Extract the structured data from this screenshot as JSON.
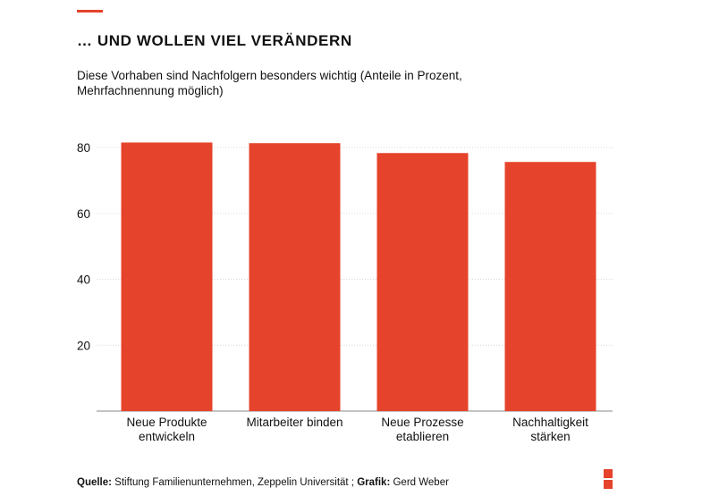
{
  "header": {
    "title": "… UND WOLLEN VIEL VERÄNDERN",
    "subtitle": "Diese Vorhaben sind Nachfolgern besonders wichtig (Anteile in Prozent, Mehrfachnennung möglich)"
  },
  "footer": {
    "source_label": "Quelle:",
    "source_text": " Stiftung Familienunternehmen, Zeppelin Universität ; ",
    "graphic_label": "Grafik:",
    "graphic_text": " Gerd Weber"
  },
  "colors": {
    "accent": "#e5432b",
    "bar": "#e5432b"
  },
  "chart_data": {
    "type": "bar",
    "title": "… UND WOLLEN VIEL VERÄNDERN",
    "subtitle": "Diese Vorhaben sind Nachfolgern besonders wichtig (Anteile in Prozent, Mehrfachnennung möglich)",
    "categories": [
      [
        "Neue Produkte",
        "entwickeln"
      ],
      [
        "Mitarbeiter binden"
      ],
      [
        "Neue Prozesse",
        "etablieren"
      ],
      [
        "Nachhaltigkeit",
        "stärken"
      ]
    ],
    "values": [
      81.5,
      81.3,
      78.3,
      75.6
    ],
    "yticks": [
      20,
      40,
      60,
      80
    ],
    "ylim": [
      0,
      80
    ],
    "grid": true,
    "xlabel": "",
    "ylabel": ""
  }
}
